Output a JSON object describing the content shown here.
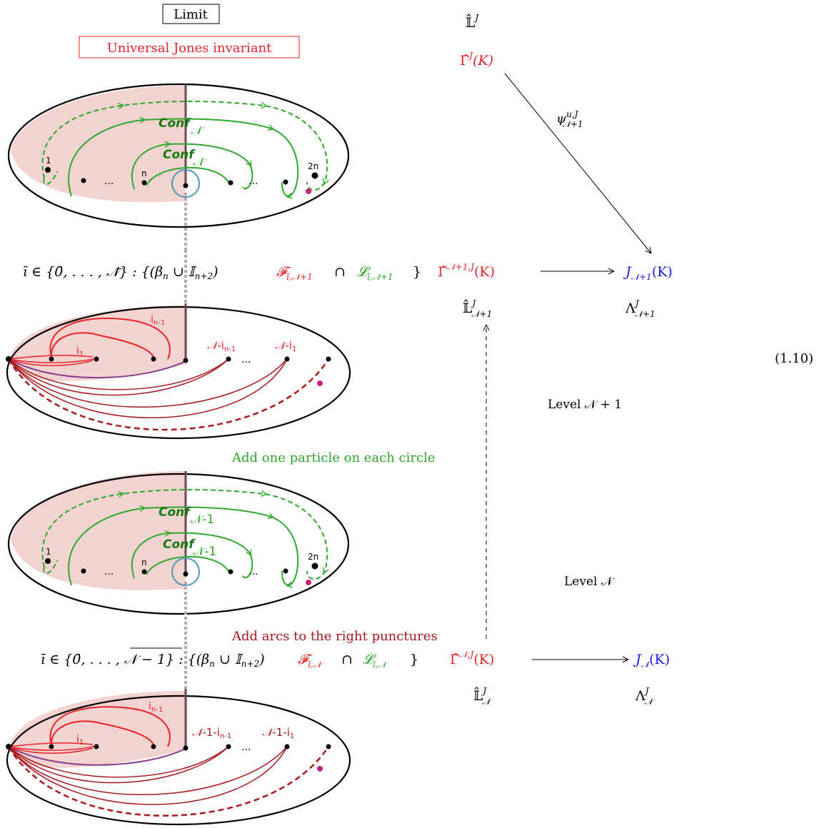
{
  "header": {
    "limit": "Limit",
    "universal": "Universal Jones invariant"
  },
  "top_right": {
    "L_hat_J": "𝕃̂",
    "L_sup": "J",
    "Gamma_label": "Γ̂",
    "Gamma_sup": "J",
    "Gamma_arg": "(K)",
    "psi": "ψ",
    "psi_sup": "u,J",
    "psi_sub": "𝒩+1"
  },
  "level_N1": {
    "formula_left": "ī ∈ {0̄, . . . , 𝒩̄} : {(β",
    "formula_mid": " ∪ 𝕀",
    "formula_end": ") ",
    "F": "𝓕",
    "F_sub": "ī,𝒩+1",
    "cap": " ∩ ",
    "L": "𝓛",
    "L_sub": "ī,𝒩+1",
    "close": "}",
    "n_sub": "n",
    "n2_sub": "n+2",
    "gamma": "Γ̂",
    "gamma_sup": "𝒩+1,J",
    "gamma_arg": "(K)",
    "J": "J",
    "J_sub": "𝒩+1",
    "J_arg": "(K)",
    "Lhat": "𝕃̂",
    "Lhat_sup": "J",
    "Lhat_sub": "𝒩+1",
    "Lambda": "Λ",
    "Lambda_sup": "J",
    "Lambda_sub": "𝒩+1",
    "level_label": "Level 𝒩 + 1"
  },
  "middle": {
    "eq_number": "(1.10)",
    "add_particle": "Add one particle on each circle",
    "add_arcs": "Add arcs to the right punctures"
  },
  "level_N": {
    "formula_left": "ī ∈ {0̄, . . . , ",
    "formula_over": "𝒩 − 1",
    "formula_right": "} : {(β",
    "formula_mid": " ∪ 𝕀",
    "formula_end": ") ",
    "F": "𝓕",
    "F_sub": "ī,𝒩",
    "cap": " ∩ ",
    "L": "𝓛",
    "L_sub": "ī,𝒩",
    "close": "}",
    "n_sub": "n",
    "n2_sub": "n+2",
    "gamma": "Γ̂",
    "gamma_sup": "𝒩,J",
    "gamma_arg": "(K)",
    "J": "J",
    "J_sub": "𝒩",
    "J_arg": "(K)",
    "Lhat": "𝕃̂",
    "Lhat_sup": "J",
    "Lhat_sub": "𝒩",
    "Lambda": "Λ",
    "Lambda_sup": "J",
    "Lambda_sub": "𝒩",
    "level_label": "Level 𝒩"
  },
  "figure1": {
    "p1": "1",
    "pn": "n",
    "p2n": "2n",
    "dots1": "...",
    "dots2": "...",
    "conf": "Conf",
    "conf_sub": "𝒩"
  },
  "figure2": {
    "i1": "i",
    "i1_sub": "1",
    "in1": "i",
    "in1_sub": "n-1",
    "lbl1_a": "𝒩",
    "lbl1_b": "-i",
    "lbl1_sub": "n-1",
    "lbl2_a": "𝒩",
    "lbl2_b": "-i",
    "lbl2_sub": "1",
    "dots": "..."
  },
  "figure3": {
    "p1": "1",
    "pn": "n",
    "p2n": "2n",
    "dots1": "...",
    "dots2": "...",
    "conf": "Conf",
    "conf_sub": "𝒩-1"
  },
  "figure4": {
    "i1": "i",
    "i1_sub": "1",
    "in1": "i",
    "in1_sub": "n-1",
    "lbl1_a": "𝒩",
    "lbl1_b": "-1-i",
    "lbl1_sub": "n-1",
    "lbl2_a": "𝒩",
    "lbl2_b": "-1-i",
    "lbl2_sub": "1",
    "dots": "..."
  },
  "colors": {
    "red": "#e8232a",
    "darkred": "#a8181e",
    "green": "#2fa82c",
    "darkgreen": "#167a14",
    "blue": "#1a1ae6",
    "pink": "#f2d3d0",
    "magenta": "#c8227f",
    "teal": "#4a9ab0"
  }
}
